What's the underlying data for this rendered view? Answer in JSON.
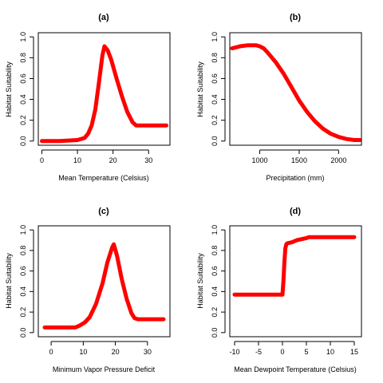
{
  "chart_data": [
    {
      "type": "line",
      "title": "(a)",
      "xlabel": "Mean Temperature (Celsius)",
      "ylabel": "Habitat Suitability",
      "xlim": [
        -1,
        36
      ],
      "ylim": [
        -0.04,
        1.04
      ],
      "xticks": [
        0,
        10,
        20,
        30
      ],
      "yticks": [
        0.0,
        0.2,
        0.4,
        0.6,
        0.8,
        1.0
      ],
      "ytick_labels": [
        "0.0",
        "0.2",
        "0.4",
        "0.6",
        "0.8",
        "1.0"
      ],
      "grid": false,
      "series": [
        {
          "color": "#ff0000",
          "x": [
            0,
            5,
            10,
            12,
            13,
            14,
            15,
            16,
            17,
            17.6,
            18.5,
            19.5,
            21,
            22.5,
            24,
            25.5,
            26.5,
            27.5,
            30,
            35
          ],
          "y": [
            0,
            0,
            0.01,
            0.03,
            0.07,
            0.15,
            0.3,
            0.55,
            0.82,
            0.91,
            0.87,
            0.78,
            0.6,
            0.43,
            0.28,
            0.18,
            0.15,
            0.15,
            0.15,
            0.15
          ]
        }
      ]
    },
    {
      "type": "line",
      "title": "(b)",
      "xlabel": "Precipitation (mm)",
      "ylabel": "Habitat Suitability",
      "xlim": [
        620,
        2290
      ],
      "ylim": [
        -0.04,
        1.04
      ],
      "xticks": [
        1000,
        1500,
        2000
      ],
      "yticks": [
        0.0,
        0.2,
        0.4,
        0.6,
        0.8,
        1.0
      ],
      "ytick_labels": [
        "0.0",
        "0.2",
        "0.4",
        "0.6",
        "0.8",
        "1.0"
      ],
      "grid": false,
      "series": [
        {
          "color": "#ff0000",
          "x": [
            650,
            750,
            850,
            950,
            1000,
            1050,
            1100,
            1200,
            1300,
            1400,
            1500,
            1600,
            1700,
            1800,
            1900,
            2000,
            2100,
            2200,
            2270
          ],
          "y": [
            0.89,
            0.91,
            0.92,
            0.92,
            0.91,
            0.89,
            0.85,
            0.76,
            0.65,
            0.52,
            0.39,
            0.28,
            0.19,
            0.12,
            0.07,
            0.04,
            0.02,
            0.01,
            0.01
          ]
        }
      ]
    },
    {
      "type": "line",
      "title": "(c)",
      "xlabel": "Minimum Vapor Pressure Deficit",
      "ylabel": "Habitat Suitability",
      "xlim": [
        -4,
        37
      ],
      "ylim": [
        -0.04,
        1.04
      ],
      "xticks": [
        0,
        10,
        20,
        30
      ],
      "yticks": [
        0.0,
        0.2,
        0.4,
        0.6,
        0.8,
        1.0
      ],
      "ytick_labels": [
        "0.0",
        "0.2",
        "0.4",
        "0.6",
        "0.8",
        "1.0"
      ],
      "grid": false,
      "series": [
        {
          "color": "#ff0000",
          "x": [
            -2,
            4,
            7.5,
            9,
            10.5,
            12,
            14,
            16,
            17.5,
            19,
            19.5,
            20.5,
            22,
            23.5,
            25,
            26,
            27,
            30,
            35
          ],
          "y": [
            0.05,
            0.05,
            0.05,
            0.07,
            0.1,
            0.15,
            0.28,
            0.48,
            0.68,
            0.83,
            0.86,
            0.75,
            0.52,
            0.33,
            0.19,
            0.14,
            0.13,
            0.13,
            0.13
          ]
        }
      ]
    },
    {
      "type": "line",
      "title": "(d)",
      "xlabel": "Mean Dewpoint Temperature (Celsius)",
      "ylabel": "Habitat Suitability",
      "xlim": [
        -11,
        16.5
      ],
      "ylim": [
        -0.04,
        1.04
      ],
      "xticks": [
        -10,
        -5,
        0,
        5,
        10,
        15
      ],
      "yticks": [
        0.0,
        0.2,
        0.4,
        0.6,
        0.8,
        1.0
      ],
      "ytick_labels": [
        "0.0",
        "0.2",
        "0.4",
        "0.6",
        "0.8",
        "1.0"
      ],
      "grid": false,
      "series": [
        {
          "color": "#ff0000",
          "x": [
            -10,
            -5,
            0,
            0.2,
            0.4,
            0.6,
            0.8,
            1,
            2,
            3,
            4,
            5,
            5.5,
            6,
            8,
            10,
            15
          ],
          "y": [
            0.37,
            0.37,
            0.37,
            0.5,
            0.68,
            0.82,
            0.86,
            0.87,
            0.88,
            0.9,
            0.91,
            0.92,
            0.93,
            0.93,
            0.93,
            0.93,
            0.93
          ]
        }
      ]
    }
  ]
}
